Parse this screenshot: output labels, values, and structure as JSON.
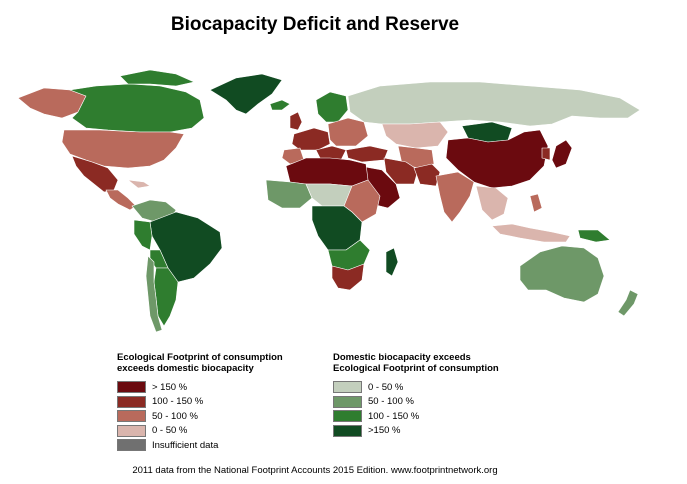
{
  "title": "Biocapacity Deficit and Reserve",
  "colors": {
    "deficit_over_150": "#6b0a0f",
    "deficit_100_150": "#8b2a23",
    "deficit_50_100": "#b96a5c",
    "deficit_0_50": "#dab5ad",
    "insufficient": "#707070",
    "reserve_0_50": "#c3cfbd",
    "reserve_50_100": "#6e9868",
    "reserve_100_150": "#2f7d2f",
    "reserve_over_150": "#114b22",
    "background": "#ffffff"
  },
  "legend": {
    "deficit": {
      "heading_line1": "Ecological Footprint of consumption",
      "heading_line2": "exceeds domestic biocapacity",
      "items": [
        {
          "label": "> 150 %",
          "color": "#6b0a0f"
        },
        {
          "label": "100 - 150 %",
          "color": "#8b2a23"
        },
        {
          "label": "50 - 100 %",
          "color": "#b96a5c"
        },
        {
          "label": "0 - 50 %",
          "color": "#dab5ad"
        },
        {
          "label": "Insufficient data",
          "color": "#707070"
        }
      ]
    },
    "reserve": {
      "heading_line1": "Domestic biocapacity exceeds",
      "heading_line2": "Ecological Footprint of consumption",
      "items": [
        {
          "label": "0 - 50 %",
          "color": "#c3cfbd"
        },
        {
          "label": "50 - 100 %",
          "color": "#6e9868"
        },
        {
          "label": "100 - 150 %",
          "color": "#2f7d2f"
        },
        {
          "label": ">150 %",
          "color": "#114b22"
        }
      ]
    }
  },
  "footer": "2011 data from the National Footprint Accounts 2015 Edition. www.footprintnetwork.org"
}
